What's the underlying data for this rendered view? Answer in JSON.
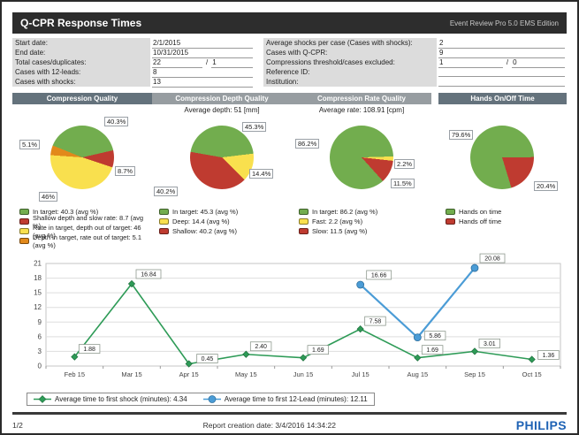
{
  "page": {
    "title": "Q-CPR Response Times",
    "edition": "Event Review Pro 5.0 EMS Edition"
  },
  "form": {
    "left": [
      {
        "label": "Start date:",
        "value": "2/1/2015"
      },
      {
        "label": "End date:",
        "value": "10/31/2015"
      },
      {
        "label": "Total cases/duplicates:",
        "value": "22",
        "value2": "1"
      },
      {
        "label": "Cases with 12-leads:",
        "value": "8"
      },
      {
        "label": "Cases with shocks:",
        "value": "13"
      }
    ],
    "right": [
      {
        "label": "Average shocks per case (Cases with shocks):",
        "value": "2"
      },
      {
        "label": "Cases with Q-CPR:",
        "value": "9"
      },
      {
        "label": "Compressions threshold/cases excluded:",
        "value": "1",
        "value2": "0"
      },
      {
        "label": "Reference ID:",
        "value": ""
      },
      {
        "label": "Institution:",
        "value": ""
      }
    ]
  },
  "chart_data": [
    {
      "type": "pie",
      "title": "Compression Quality",
      "subtitle": "",
      "header_shade": "dark",
      "start_angle": -68,
      "slices": [
        {
          "name": "In target",
          "value": 40.3,
          "label": "40.3%",
          "color": "#72ad4e"
        },
        {
          "name": "Shallow depth and slow rate",
          "value": 8.7,
          "label": "8.7%",
          "color": "#bf3b30"
        },
        {
          "name": "Rate in target, depth out of target",
          "value": 46,
          "label": "46%",
          "color": "#f9e04e"
        },
        {
          "name": "Depth in target, rate out of target",
          "value": 5.1,
          "label": "5.1%",
          "color": "#e2891b"
        }
      ],
      "legend": [
        {
          "color": "#72ad4e",
          "text": "In target: 40.3 (avg %)"
        },
        {
          "color": "#bf3b30",
          "text": "Shallow depth and slow rate: 8.7  (avg %)"
        },
        {
          "color": "#f9e04e",
          "text": "Rate in target, depth out of target: 46  (avg %)"
        },
        {
          "color": "#e2891b",
          "text": "Depth in target, rate out of target: 5.1  (avg %)"
        }
      ]
    },
    {
      "type": "pie",
      "title": "Compression Depth Quality",
      "subtitle": "Average depth: 51 [mm]",
      "header_shade": "light",
      "start_angle": -80,
      "slices": [
        {
          "name": "In target",
          "value": 45.3,
          "label": "45.3%",
          "color": "#72ad4e"
        },
        {
          "name": "Deep",
          "value": 14.4,
          "label": "14.4%",
          "color": "#f9e04e"
        },
        {
          "name": "Shallow",
          "value": 40.2,
          "label": "40.2%",
          "color": "#bf3b30"
        }
      ],
      "legend": [
        {
          "color": "#72ad4e",
          "text": "In target: 45.3  (avg %)"
        },
        {
          "color": "#f9e04e",
          "text": "Deep: 14.4  (avg %)"
        },
        {
          "color": "#bf3b30",
          "text": "Shallow: 40.2  (avg %)"
        }
      ]
    },
    {
      "type": "pie",
      "title": "Compression Rate Quality",
      "subtitle": "Average rate: 108.91 [cpm]",
      "header_shade": "light",
      "start_angle": 138,
      "slices": [
        {
          "name": "In target",
          "value": 86.2,
          "label": "86.2%",
          "color": "#72ad4e"
        },
        {
          "name": "Fast",
          "value": 2.2,
          "label": "2.2%",
          "color": "#f9e04e"
        },
        {
          "name": "Slow",
          "value": 11.5,
          "label": "11.5%",
          "color": "#bf3b30"
        }
      ],
      "legend": [
        {
          "color": "#72ad4e",
          "text": "In target: 86.2  (avg %)"
        },
        {
          "color": "#f9e04e",
          "text": "Fast: 2.2  (avg %)"
        },
        {
          "color": "#bf3b30",
          "text": "Slow: 11.5  (avg %)"
        }
      ]
    },
    {
      "type": "pie",
      "title": "Hands On/Off Time",
      "subtitle": "",
      "header_shade": "dark",
      "start_angle": 163,
      "slices": [
        {
          "name": "Hands on time",
          "value": 79.6,
          "label": "79.6%",
          "color": "#72ad4e"
        },
        {
          "name": "Hands off time",
          "value": 20.4,
          "label": "20.4%",
          "color": "#bf3b30"
        }
      ],
      "legend": [
        {
          "color": "#72ad4e",
          "text": "Hands on time"
        },
        {
          "color": "#bf3b30",
          "text": "Hands off time"
        }
      ]
    },
    {
      "type": "line",
      "categories": [
        "Feb 15",
        "Mar 15",
        "Apr 15",
        "May 15",
        "Jun 15",
        "Jul 15",
        "Aug 15",
        "Sep 15",
        "Oct 15"
      ],
      "ylim": [
        0,
        21
      ],
      "ytick_step": 3,
      "grid": true,
      "legend_position": "bottom-left",
      "series": [
        {
          "name": "Average time to first shock (minutes)",
          "legend_label": "Average time to first shock (minutes): 4.34",
          "average": 4.34,
          "color": "#2e9b57",
          "marker": "diamond",
          "values": [
            1.88,
            16.84,
            0.45,
            2.4,
            1.69,
            7.58,
            1.69,
            3.01,
            1.36
          ],
          "labels": [
            "1.88",
            "16.84",
            "0.45",
            "2.40",
            "1.69",
            "7.58",
            "1.69",
            "3.01",
            "1.36"
          ]
        },
        {
          "name": "Average time to first 12-Lead (minutes)",
          "legend_label": "Average time to first 12-Lead (minutes): 12.11",
          "average": 12.11,
          "color": "#4b9cd6",
          "marker": "circle",
          "values": [
            null,
            null,
            null,
            null,
            null,
            16.66,
            5.86,
            20.08,
            null
          ],
          "labels": [
            null,
            null,
            null,
            null,
            null,
            "16.66",
            "5.86",
            "20.08",
            null
          ]
        }
      ]
    }
  ],
  "footer": {
    "page": "1/2",
    "creation": "Report creation date: 3/4/2016 14:34:22",
    "brand": "PHILIPS"
  }
}
